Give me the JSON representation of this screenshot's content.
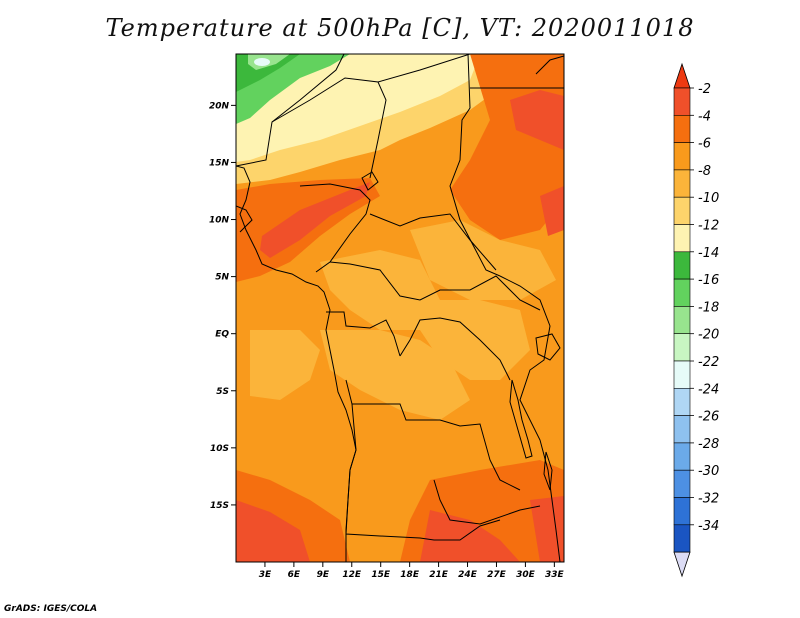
{
  "title": "Temperature at 500hPa [C], VT: 2020011018",
  "footer": "GrADS: IGES/COLA",
  "map": {
    "lon_range": [
      0,
      34
    ],
    "lat_range": [
      -20,
      24.5
    ],
    "lon_ticks": [
      "3E",
      "6E",
      "9E",
      "12E",
      "15E",
      "18E",
      "21E",
      "24E",
      "27E",
      "30E",
      "33E"
    ],
    "lat_ticks": [
      "20N",
      "15N",
      "10N",
      "5N",
      "EQ",
      "5S",
      "10S",
      "15S"
    ]
  },
  "colorbar": {
    "levels": [
      "-2",
      "-4",
      "-6",
      "-8",
      "-10",
      "-12",
      "-14",
      "-16",
      "-18",
      "-20",
      "-22",
      "-24",
      "-26",
      "-28",
      "-30",
      "-32",
      "-34"
    ],
    "colors": [
      "#f0502a",
      "#f56f0f",
      "#f99a1c",
      "#fbb43a",
      "#fdd46b",
      "#fef3b2",
      "#3cb83c",
      "#62d25e",
      "#98e48e",
      "#c8f6c2",
      "#e6fbf8",
      "#afd6f4",
      "#8ec1ef",
      "#6baae9",
      "#4d90e3",
      "#2e72d6",
      "#1a55c2",
      "#0d36a0",
      "#07106b",
      "#dcdcf5"
    ],
    "top_arrow_color": "#ee3a12",
    "bottom_arrow_color": "#dcdcf5"
  }
}
